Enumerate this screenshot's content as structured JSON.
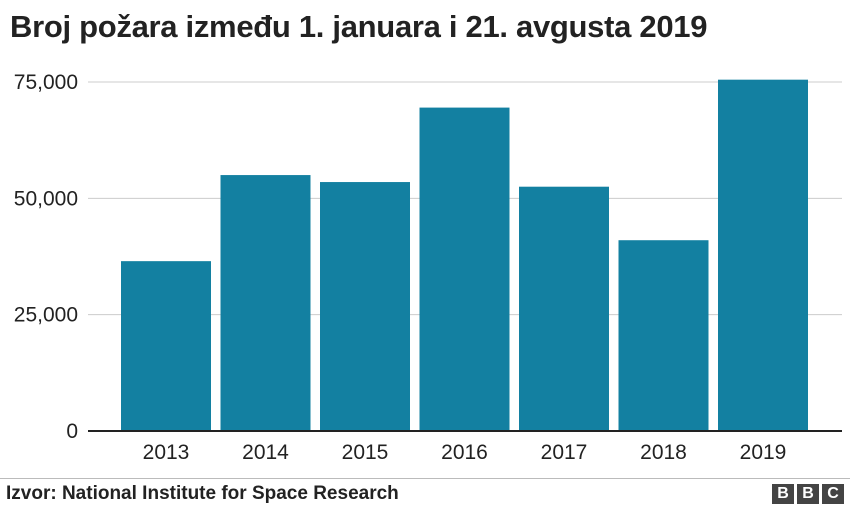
{
  "chart_data": {
    "type": "bar",
    "title": "Broj požara između 1. januara i 21. avgusta 2019",
    "categories": [
      "2013",
      "2014",
      "2015",
      "2016",
      "2017",
      "2018",
      "2019"
    ],
    "values": [
      36500,
      55000,
      53500,
      69500,
      52500,
      41000,
      75500
    ],
    "yticks": [
      0,
      25000,
      50000,
      75000
    ],
    "ytick_labels": [
      "0",
      "25,000",
      "50,000",
      "75,000"
    ],
    "ylim": [
      0,
      75000
    ],
    "grid": true,
    "bar_color": "#1380a1",
    "source": "Izvor: National Institute for Space Research"
  },
  "footer": {
    "logo_letters": [
      "B",
      "B",
      "C"
    ]
  }
}
